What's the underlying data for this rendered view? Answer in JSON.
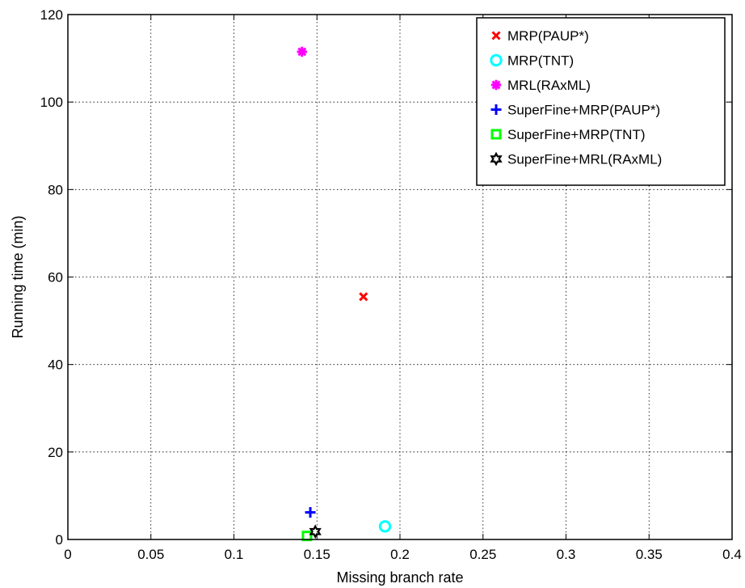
{
  "chart_data": {
    "type": "scatter",
    "title": "",
    "xlabel": "Missing branch rate",
    "ylabel": "Running time (min)",
    "xlim": [
      0,
      0.4
    ],
    "ylim": [
      0,
      120
    ],
    "xticks": [
      0,
      0.05,
      0.1,
      0.15,
      0.2,
      0.25,
      0.3,
      0.35,
      0.4
    ],
    "xtick_labels": [
      "0",
      "0.05",
      "0.1",
      "0.15",
      "0.2",
      "0.25",
      "0.3",
      "0.35",
      "0.4"
    ],
    "yticks": [
      0,
      20,
      40,
      60,
      80,
      100,
      120
    ],
    "ytick_labels": [
      "0",
      "20",
      "40",
      "60",
      "80",
      "100",
      "120"
    ],
    "grid": true,
    "legend_position": "top-right",
    "series": [
      {
        "name": "MRP(PAUP*)",
        "marker": "x",
        "color": "#ff0000",
        "points": [
          {
            "x": 0.178,
            "y": 55.5
          }
        ]
      },
      {
        "name": "MRP(TNT)",
        "marker": "o",
        "color": "#00ffff",
        "points": [
          {
            "x": 0.191,
            "y": 3.0
          }
        ]
      },
      {
        "name": "MRL(RAxML)",
        "marker": "*",
        "color": "#ff00ff",
        "points": [
          {
            "x": 0.141,
            "y": 111.5
          }
        ]
      },
      {
        "name": "SuperFine+MRP(PAUP*)",
        "marker": "+",
        "color": "#0000ff",
        "points": [
          {
            "x": 0.146,
            "y": 6.2
          }
        ]
      },
      {
        "name": "SuperFine+MRP(TNT)",
        "marker": "s",
        "color": "#00ff00",
        "points": [
          {
            "x": 0.144,
            "y": 0.8
          }
        ]
      },
      {
        "name": "SuperFine+MRL(RAxML)",
        "marker": "hexagram",
        "color": "#000000",
        "points": [
          {
            "x": 0.149,
            "y": 1.8
          }
        ]
      }
    ]
  }
}
